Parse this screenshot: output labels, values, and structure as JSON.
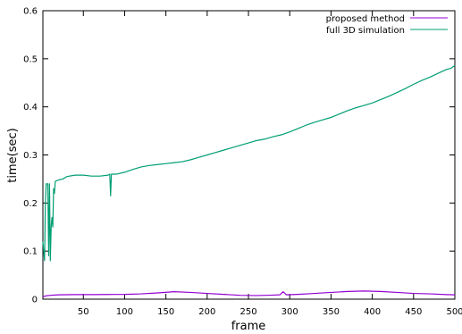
{
  "chart_data": {
    "type": "line",
    "title": "",
    "xlabel": "frame",
    "ylabel": "time(sec)",
    "xlim": [
      1,
      500
    ],
    "ylim": [
      0,
      0.6
    ],
    "x_ticks": [
      50,
      100,
      150,
      200,
      250,
      300,
      350,
      400,
      450,
      500
    ],
    "y_ticks": [
      0,
      0.1,
      0.2,
      0.3,
      0.4,
      0.5,
      0.6
    ],
    "grid": false,
    "legend_position": "top-right",
    "series": [
      {
        "name": "proposed method",
        "color": "#9400d3",
        "points": [
          [
            1,
            0.005
          ],
          [
            5,
            0.007
          ],
          [
            10,
            0.008
          ],
          [
            20,
            0.009
          ],
          [
            40,
            0.0095
          ],
          [
            60,
            0.0095
          ],
          [
            80,
            0.0098
          ],
          [
            100,
            0.01
          ],
          [
            120,
            0.011
          ],
          [
            140,
            0.013
          ],
          [
            160,
            0.0155
          ],
          [
            180,
            0.014
          ],
          [
            200,
            0.012
          ],
          [
            220,
            0.01
          ],
          [
            240,
            0.008
          ],
          [
            260,
            0.0075
          ],
          [
            280,
            0.0085
          ],
          [
            288,
            0.009
          ],
          [
            292,
            0.0155
          ],
          [
            296,
            0.009
          ],
          [
            310,
            0.01
          ],
          [
            330,
            0.012
          ],
          [
            350,
            0.014
          ],
          [
            370,
            0.016
          ],
          [
            390,
            0.017
          ],
          [
            410,
            0.016
          ],
          [
            430,
            0.014
          ],
          [
            450,
            0.012
          ],
          [
            470,
            0.011
          ],
          [
            490,
            0.0095
          ],
          [
            500,
            0.009
          ]
        ]
      },
      {
        "name": "full 3D simulation",
        "color": "#009e73",
        "points": [
          [
            1,
            0.12
          ],
          [
            3,
            0.08
          ],
          [
            4,
            0.2
          ],
          [
            5,
            0.24
          ],
          [
            6,
            0.24
          ],
          [
            7,
            0.24
          ],
          [
            8,
            0.09
          ],
          [
            9,
            0.24
          ],
          [
            10,
            0.08
          ],
          [
            11,
            0.15
          ],
          [
            12,
            0.17
          ],
          [
            13,
            0.15
          ],
          [
            14,
            0.23
          ],
          [
            15,
            0.22
          ],
          [
            16,
            0.245
          ],
          [
            20,
            0.248
          ],
          [
            25,
            0.25
          ],
          [
            30,
            0.255
          ],
          [
            40,
            0.258
          ],
          [
            50,
            0.258
          ],
          [
            60,
            0.256
          ],
          [
            70,
            0.256
          ],
          [
            80,
            0.258
          ],
          [
            82,
            0.26
          ],
          [
            83,
            0.215
          ],
          [
            84,
            0.26
          ],
          [
            90,
            0.26
          ],
          [
            100,
            0.264
          ],
          [
            110,
            0.27
          ],
          [
            120,
            0.275
          ],
          [
            130,
            0.278
          ],
          [
            140,
            0.28
          ],
          [
            150,
            0.282
          ],
          [
            160,
            0.284
          ],
          [
            170,
            0.286
          ],
          [
            180,
            0.29
          ],
          [
            190,
            0.295
          ],
          [
            200,
            0.3
          ],
          [
            210,
            0.305
          ],
          [
            220,
            0.31
          ],
          [
            230,
            0.315
          ],
          [
            240,
            0.32
          ],
          [
            250,
            0.325
          ],
          [
            260,
            0.33
          ],
          [
            270,
            0.333
          ],
          [
            280,
            0.338
          ],
          [
            290,
            0.342
          ],
          [
            300,
            0.348
          ],
          [
            310,
            0.355
          ],
          [
            320,
            0.362
          ],
          [
            330,
            0.368
          ],
          [
            340,
            0.373
          ],
          [
            350,
            0.378
          ],
          [
            360,
            0.385
          ],
          [
            370,
            0.392
          ],
          [
            380,
            0.398
          ],
          [
            390,
            0.403
          ],
          [
            400,
            0.408
          ],
          [
            410,
            0.415
          ],
          [
            420,
            0.422
          ],
          [
            430,
            0.43
          ],
          [
            440,
            0.438
          ],
          [
            450,
            0.447
          ],
          [
            460,
            0.455
          ],
          [
            470,
            0.462
          ],
          [
            480,
            0.47
          ],
          [
            490,
            0.478
          ],
          [
            495,
            0.48
          ],
          [
            500,
            0.486
          ]
        ]
      }
    ]
  }
}
